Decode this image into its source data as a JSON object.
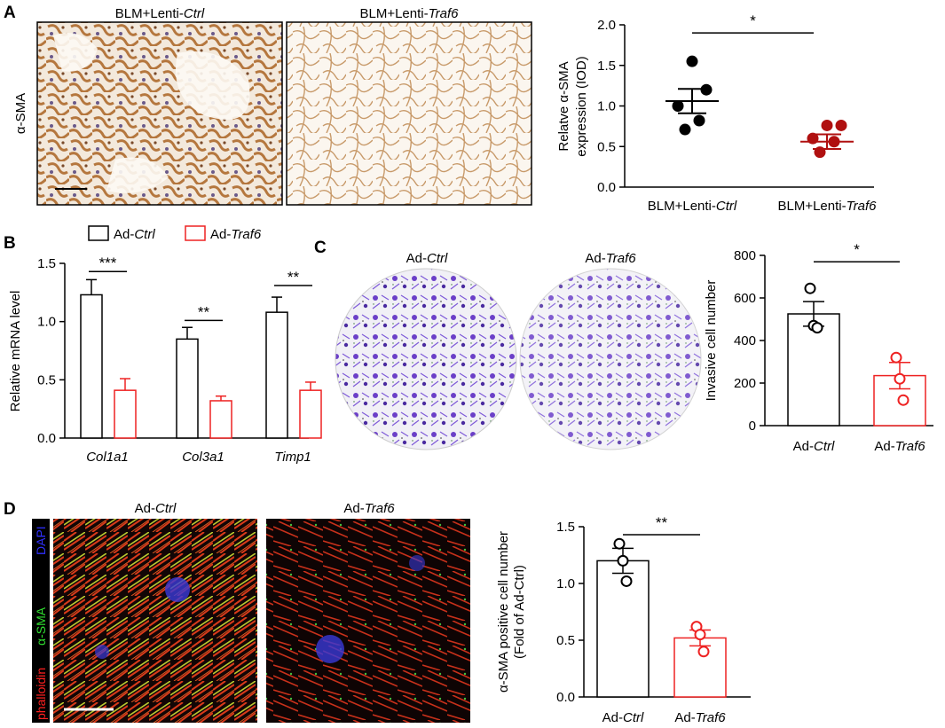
{
  "panels": {
    "A": {
      "letter": "A",
      "image_titles": [
        {
          "prefix": "BLM+Lenti-",
          "italic": "Ctrl"
        },
        {
          "prefix": "BLM+Lenti-",
          "italic": "Traf6"
        }
      ],
      "stain_label": "α-SMA"
    },
    "B": {
      "letter": "B"
    },
    "C": {
      "letter": "C",
      "image_titles": [
        {
          "prefix": "Ad-",
          "italic": "Ctrl"
        },
        {
          "prefix": "Ad-",
          "italic": "Traf6"
        }
      ]
    },
    "D": {
      "letter": "D",
      "image_titles": [
        {
          "prefix": "Ad-",
          "italic": "Ctrl"
        },
        {
          "prefix": "Ad-",
          "italic": "Traf6"
        }
      ],
      "stain_labels": [
        {
          "text": "phalloidin",
          "color": "#ff2020"
        },
        {
          "text": "α-SMA",
          "color": "#30e030"
        },
        {
          "text": "DAPI",
          "color": "#3030ff"
        }
      ]
    }
  },
  "chart_data": [
    {
      "panel": "A",
      "type": "scatter",
      "ylabel_lines": [
        "Relatve α-SMA",
        "expression (IOD)"
      ],
      "ylim": [
        0,
        2.0
      ],
      "yticks": [
        0.0,
        0.5,
        1.0,
        1.5,
        2.0
      ],
      "ytick_labels": [
        "0.0",
        "0.5",
        "1.0",
        "1.5",
        "2.0"
      ],
      "categories": [
        {
          "prefix": "BLM+Lenti-",
          "italic": "Ctrl"
        },
        {
          "prefix": "BLM+Lenti-",
          "italic": "Traf6"
        }
      ],
      "series": [
        {
          "points": [
            1.55,
            1.2,
            1.0,
            0.82,
            0.71
          ],
          "mean": 1.06,
          "sem": 0.15,
          "color": "#000000",
          "filled": true
        },
        {
          "points": [
            0.76,
            0.76,
            0.6,
            0.56,
            0.43
          ],
          "mean": 0.56,
          "sem": 0.09,
          "color": "#b01010",
          "filled": true
        }
      ],
      "significance": {
        "label": "*",
        "level": 1.9
      }
    },
    {
      "panel": "B",
      "type": "bar",
      "ylabel": "Relative mRNA level",
      "ylim": [
        0,
        1.5
      ],
      "yticks": [
        0.0,
        0.5,
        1.0,
        1.5
      ],
      "ytick_labels": [
        "0.0",
        "0.5",
        "1.0",
        "1.5"
      ],
      "categories": [
        "Col1a1",
        "Col3a1",
        "Timp1"
      ],
      "legend": [
        {
          "prefix": "Ad-",
          "italic": "Ctrl",
          "color": "#000000"
        },
        {
          "prefix": "Ad-",
          "italic": "Traf6",
          "color": "#ee2222"
        }
      ],
      "series": [
        {
          "values": [
            1.23,
            0.85,
            1.08
          ],
          "errors": [
            0.13,
            0.1,
            0.13
          ],
          "color": "#000000"
        },
        {
          "values": [
            0.41,
            0.32,
            0.41
          ],
          "errors": [
            0.1,
            0.04,
            0.07
          ],
          "color": "#ee2222"
        }
      ],
      "significance": [
        {
          "category": 0,
          "label": "***",
          "level": 1.43
        },
        {
          "category": 1,
          "label": "**",
          "level": 1.01
        },
        {
          "category": 2,
          "label": "**",
          "level": 1.31
        }
      ]
    },
    {
      "panel": "C",
      "type": "bar",
      "ylabel": "Invasive cell number",
      "ylim": [
        0,
        800
      ],
      "yticks": [
        0,
        200,
        400,
        600,
        800
      ],
      "ytick_labels": [
        "0",
        "200",
        "400",
        "600",
        "800"
      ],
      "categories": [
        {
          "prefix": "Ad-",
          "italic": "Ctrl"
        },
        {
          "prefix": "Ad-",
          "italic": "Traf6"
        }
      ],
      "series": [
        {
          "value": 525,
          "error": 58,
          "points": [
            645,
            470,
            460
          ],
          "color": "#000000"
        },
        {
          "value": 235,
          "error": 62,
          "points": [
            320,
            220,
            120
          ],
          "color": "#ee2222"
        }
      ],
      "significance": {
        "label": "*",
        "level": 770
      }
    },
    {
      "panel": "D",
      "type": "bar",
      "ylabel_lines": [
        "α-SMA positive cell number",
        "(Fold of Ad-Ctrl)"
      ],
      "ylim": [
        0,
        1.5
      ],
      "yticks": [
        0.0,
        0.5,
        1.0,
        1.5
      ],
      "ytick_labels": [
        "0.0",
        "0.5",
        "1.0",
        "1.5"
      ],
      "categories": [
        {
          "prefix": "Ad-",
          "italic": "Ctrl"
        },
        {
          "prefix": "Ad-",
          "italic": "Traf6"
        }
      ],
      "series": [
        {
          "value": 1.2,
          "error": 0.11,
          "points": [
            1.35,
            1.2,
            1.02
          ],
          "color": "#000000"
        },
        {
          "value": 0.52,
          "error": 0.07,
          "points": [
            0.62,
            0.55,
            0.4
          ],
          "color": "#ee2222"
        }
      ],
      "significance": {
        "label": "**",
        "level": 1.43
      }
    }
  ]
}
